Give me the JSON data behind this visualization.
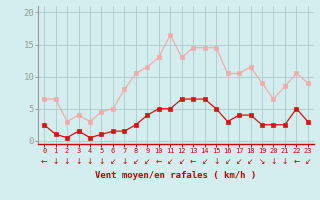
{
  "x": [
    0,
    1,
    2,
    3,
    4,
    5,
    6,
    7,
    8,
    9,
    10,
    11,
    12,
    13,
    14,
    15,
    16,
    17,
    18,
    19,
    20,
    21,
    22,
    23
  ],
  "wind_avg": [
    2.5,
    1.0,
    0.5,
    1.5,
    0.5,
    1.0,
    1.5,
    1.5,
    2.5,
    4.0,
    5.0,
    5.0,
    6.5,
    6.5,
    6.5,
    5.0,
    3.0,
    4.0,
    4.0,
    2.5,
    2.5,
    2.5,
    5.0,
    3.0
  ],
  "wind_gust": [
    6.5,
    6.5,
    3.0,
    4.0,
    3.0,
    4.5,
    5.0,
    8.0,
    10.5,
    11.5,
    13.0,
    16.5,
    13.0,
    14.5,
    14.5,
    14.5,
    10.5,
    10.5,
    11.5,
    9.0,
    6.5,
    8.5,
    10.5,
    9.0
  ],
  "avg_color": "#dd1111",
  "gust_color": "#f4aaaa",
  "bg_color": "#d4eef0",
  "grid_color": "#aacccc",
  "axis_color": "#cc0000",
  "text_color": "#cc0000",
  "xlabel": "Vent moyen/en rafales ( km/h )",
  "ylabel_ticks": [
    0,
    5,
    10,
    15,
    20
  ],
  "ylim": [
    -0.5,
    21
  ],
  "xlim": [
    -0.5,
    23.5
  ],
  "arrows": [
    "←",
    "↓",
    "↓",
    "↓",
    "↓",
    "↓",
    "↙",
    "↓",
    "↙",
    "↙",
    "←",
    "↙",
    "↙",
    "←",
    "↙",
    "↓",
    "↙",
    "↙",
    "↙",
    "↘",
    "↓",
    "↓",
    "←",
    "↙"
  ]
}
